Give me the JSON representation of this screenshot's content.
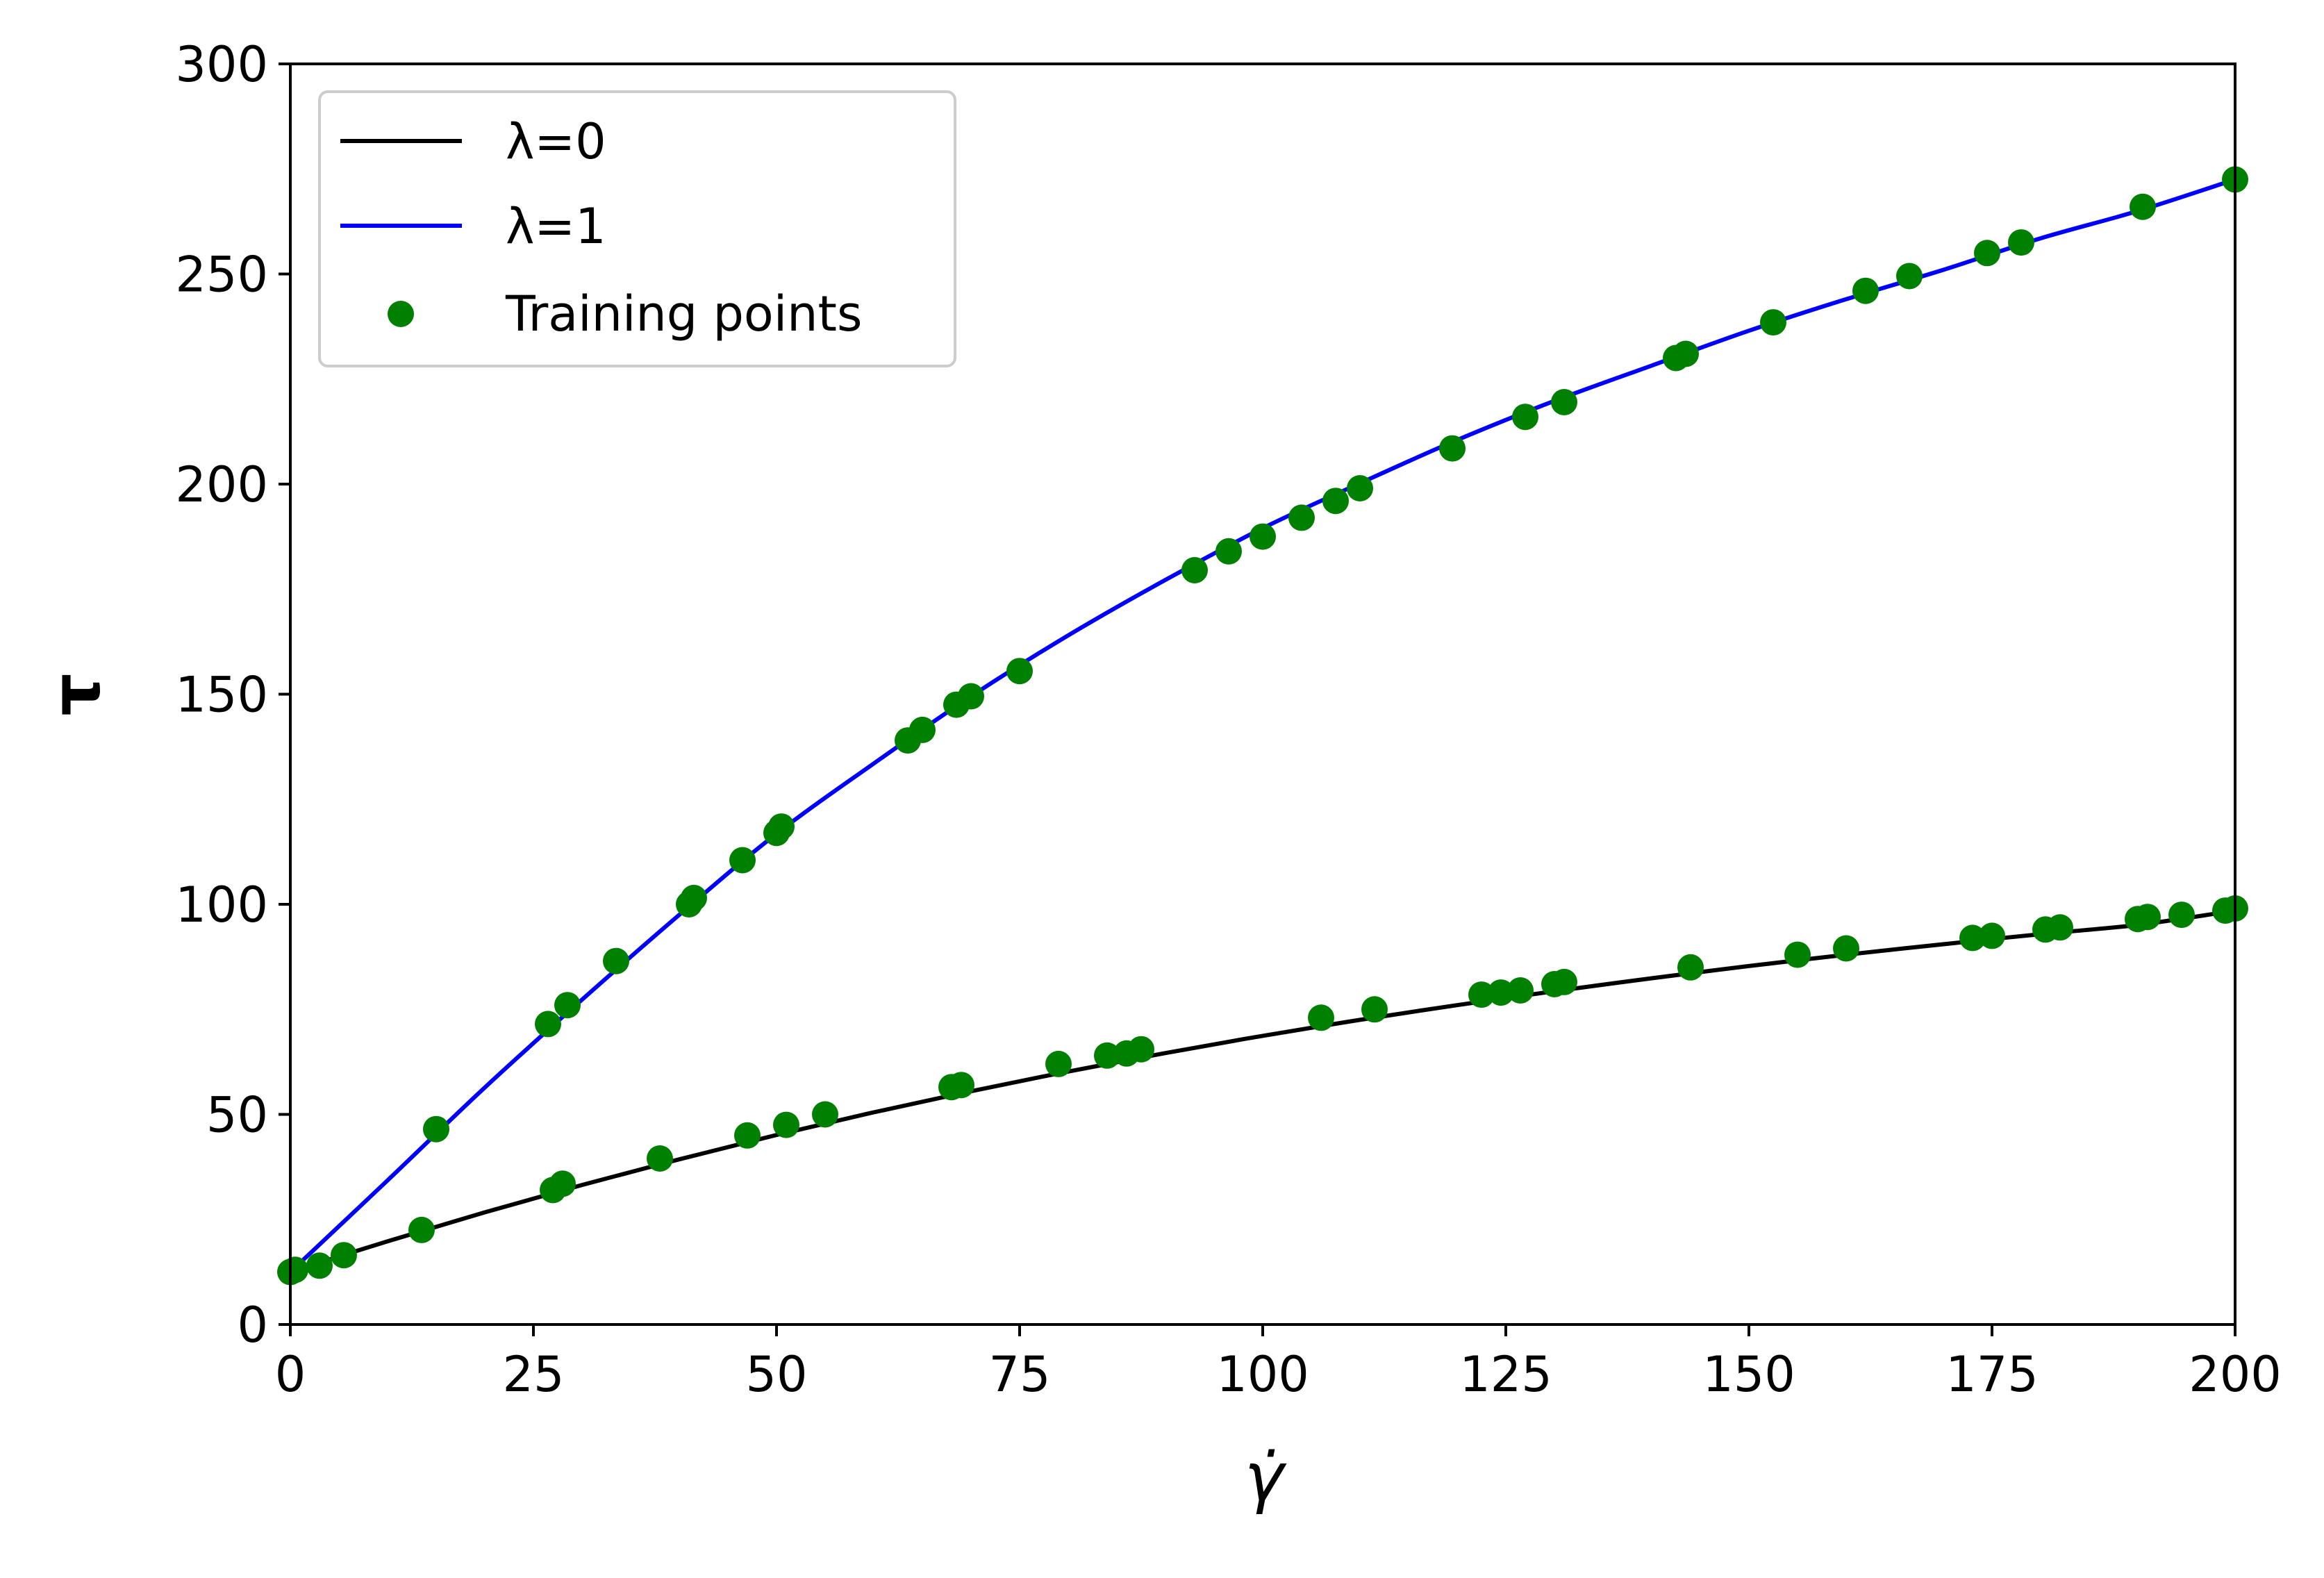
{
  "chart_data": {
    "type": "line",
    "title": "",
    "xlabel": "γ̇",
    "ylabel": "τ",
    "xlim": [
      0,
      200
    ],
    "ylim": [
      0,
      300
    ],
    "xticks": [
      0,
      25,
      50,
      75,
      100,
      125,
      150,
      175,
      200
    ],
    "yticks": [
      0,
      50,
      100,
      150,
      200,
      250,
      300
    ],
    "xtick_labels": [
      "0",
      "25",
      "50",
      "75",
      "100",
      "125",
      "150",
      "175",
      "200"
    ],
    "ytick_labels": [
      "0",
      "50",
      "100",
      "150",
      "200",
      "250",
      "300"
    ],
    "grid": false,
    "legend_position": "top-left",
    "series": [
      {
        "name": "λ=0",
        "kind": "line",
        "color": "#000000",
        "x": [
          0,
          10,
          20,
          30,
          40,
          50,
          60,
          70,
          80,
          90,
          100,
          110,
          120,
          130,
          140,
          150,
          160,
          170,
          180,
          190,
          200
        ],
        "y": [
          12.5,
          19.8,
          26.7,
          33.2,
          39.3,
          45.1,
          50.5,
          55.5,
          60.2,
          64.6,
          68.7,
          72.5,
          76.0,
          79.3,
          82.4,
          85.3,
          88.0,
          90.5,
          92.9,
          95.1,
          98.5
        ]
      },
      {
        "name": "λ=1",
        "kind": "line",
        "color": "#0000ff",
        "x": [
          0,
          10,
          20,
          30,
          40,
          50,
          60,
          70,
          80,
          90,
          100,
          110,
          120,
          130,
          140,
          150,
          160,
          170,
          180,
          190,
          200
        ],
        "y": [
          12.5,
          34.3,
          56.4,
          77.3,
          97.5,
          116.8,
          133.5,
          149.5,
          164.0,
          177.2,
          189.5,
          200.2,
          210.5,
          219.8,
          228.2,
          236.5,
          244.0,
          251.0,
          258.5,
          265.0,
          272.5
        ]
      },
      {
        "name": "Training points",
        "kind": "scatter",
        "color": "#008000",
        "x": [
          0,
          3,
          5.5,
          13.5,
          27,
          28,
          38,
          47,
          51,
          55,
          68,
          69,
          79,
          84,
          86,
          87.5,
          106,
          111.5,
          122.5,
          124.5,
          126.5,
          130,
          131,
          144,
          155,
          160,
          173,
          175,
          180.5,
          182,
          190,
          191,
          194.5,
          199,
          200,
          0.5,
          15,
          26.5,
          28.5,
          33.5,
          41,
          41.5,
          46.5,
          50,
          50.5,
          63.5,
          65,
          68.5,
          70,
          75,
          93,
          96.5,
          100,
          104,
          107.5,
          110,
          119.5,
          127,
          131,
          142.5,
          143.5,
          152.5,
          162,
          166.5,
          174.5,
          178,
          190.5,
          200
        ],
        "y": [
          12.5,
          14,
          16.5,
          22.5,
          32,
          33.5,
          39.5,
          45,
          47.5,
          50,
          56.5,
          57,
          62,
          64,
          64.5,
          65.5,
          73,
          75,
          78.5,
          79,
          79.5,
          81,
          81.5,
          85,
          88,
          89.5,
          92,
          92.5,
          94,
          94.5,
          96.5,
          97,
          97.5,
          98.5,
          99,
          13,
          46.5,
          71.5,
          76,
          86.5,
          100,
          101.5,
          110.5,
          117,
          118.5,
          139,
          141.5,
          147.5,
          149.5,
          155.5,
          179.5,
          184,
          187.5,
          192,
          196,
          199,
          208.5,
          216,
          219.5,
          230,
          231,
          238.5,
          246,
          249.5,
          255,
          257.5,
          266,
          272.5
        ]
      }
    ]
  }
}
